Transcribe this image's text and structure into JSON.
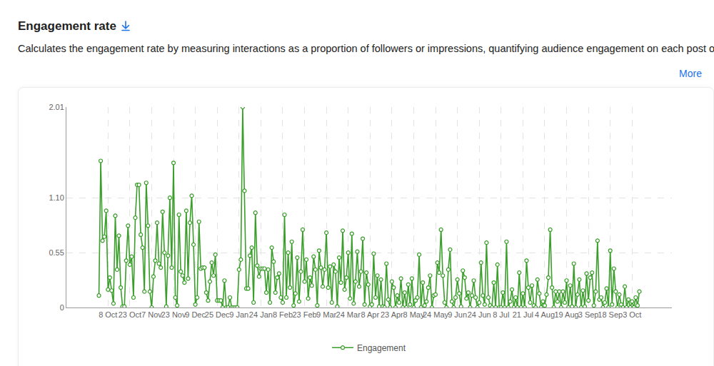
{
  "chart_data": {
    "type": "line",
    "title": "Engagement rate",
    "subtitle": "Calculates the engagement rate by measuring interactions as a proportion of followers or impressions, quantifying audience engagement on each post or over time.",
    "annotations": [
      "More"
    ],
    "categories": [
      null,
      null,
      null,
      null,
      null,
      "8 Oct",
      null,
      null,
      null,
      null,
      null,
      null,
      null,
      null,
      null,
      null,
      null,
      "23 Oct",
      null,
      null,
      null,
      null,
      null,
      null,
      null,
      null,
      null,
      null,
      null,
      "7 Nov",
      null,
      null,
      null,
      null,
      null,
      null,
      null,
      null,
      null,
      null,
      null,
      "23 Nov",
      null,
      null,
      null,
      null,
      null,
      null,
      null,
      null,
      null,
      null,
      null,
      "9 Dec",
      null,
      null,
      null,
      null,
      null,
      null,
      null,
      null,
      null,
      null,
      null,
      "25 Dec",
      null,
      null,
      null,
      null,
      null,
      null,
      null,
      null,
      null,
      null,
      null,
      "9 Jan",
      null,
      null,
      null,
      null,
      null,
      null,
      null,
      null,
      null,
      null,
      null,
      "24 Jan",
      null,
      null,
      null,
      null,
      null,
      null,
      null,
      null,
      null,
      null,
      null,
      "8 Feb",
      null,
      null,
      null,
      null,
      null,
      null,
      null,
      null,
      null,
      null,
      null,
      "23 Feb",
      null,
      null,
      null,
      null,
      null,
      null,
      null,
      null,
      null,
      null,
      null,
      "9 Mar",
      null,
      null,
      null,
      null,
      null,
      null,
      null,
      null,
      null,
      null,
      null,
      "24 Mar",
      null,
      null,
      null,
      null,
      null,
      null,
      null,
      null,
      null,
      null,
      null,
      "8 Apr",
      null,
      null,
      null,
      null,
      null,
      null,
      null,
      null,
      null,
      null,
      null,
      "23 Apr",
      null,
      null,
      null,
      null,
      null,
      null,
      null,
      null,
      null,
      null,
      null,
      "8 May",
      null,
      null,
      null,
      null,
      null,
      null,
      null,
      null,
      null,
      null,
      null,
      "24 May",
      null,
      null,
      null,
      null,
      null,
      null,
      null,
      null,
      null,
      null,
      null,
      "9 Jun",
      null,
      null,
      null,
      null,
      null,
      null,
      null,
      null,
      null,
      null,
      null,
      "24 Jun",
      null,
      null,
      null,
      null,
      null,
      null,
      null,
      null,
      null,
      null,
      null,
      "8 Jul",
      null,
      null,
      null,
      null,
      null,
      null,
      null,
      null,
      null,
      null,
      null,
      "21 Jul",
      null,
      null,
      null,
      null,
      null,
      null,
      null,
      null,
      null,
      null,
      null,
      "4 Aug",
      null,
      null,
      null,
      null,
      null,
      null,
      null,
      null,
      null,
      null,
      null,
      "19 Aug",
      null,
      null,
      null,
      null,
      null,
      null,
      null,
      null,
      null,
      null,
      null,
      "3 Sep",
      null,
      null,
      null,
      null,
      null,
      null,
      null,
      null,
      null,
      null,
      null,
      "18 Sep",
      null,
      null,
      null,
      null,
      null,
      null,
      null,
      null,
      null,
      null,
      null,
      "3 Oct",
      null,
      null,
      null,
      null
    ],
    "series": [
      {
        "name": "Engagement",
        "color": "#3a9e2a",
        "marker": "circle",
        "line_style": "solid",
        "values": [
          0.12,
          1.47,
          0.67,
          0.71,
          0.97,
          0.18,
          0.3,
          0.17,
          0.04,
          0.92,
          0.38,
          0.72,
          0.2,
          0.01,
          0.01,
          0.47,
          0.82,
          0.43,
          0.51,
          0.1,
          0.9,
          1.23,
          1.23,
          0.73,
          0.6,
          0.16,
          1.25,
          0.82,
          0.16,
          0,
          0.31,
          0.47,
          0.85,
          0.44,
          0.4,
          0.96,
          0.55,
          0.01,
          0.52,
          1.1,
          0.4,
          1.45,
          0.1,
          0.02,
          0.93,
          0.36,
          0.32,
          0.25,
          0.97,
          0.29,
          0.85,
          1.12,
          0.63,
          0.03,
          0.1,
          0.86,
          0.39,
          0.4,
          0.4,
          0.15,
          0.07,
          0.26,
          0.45,
          0.32,
          0.53,
          0.07,
          0.07,
          0.07,
          0,
          0.27,
          0,
          0,
          0.1,
          0,
          0,
          0,
          0,
          0.38,
          0.48,
          2.01,
          1.17,
          0.19,
          0.19,
          0.52,
          0.6,
          0.05,
          0.95,
          0.42,
          0.31,
          0.39,
          0.39,
          0.39,
          0.15,
          0.38,
          0.05,
          0.6,
          0.46,
          0.15,
          0.3,
          0.34,
          0.1,
          0.05,
          0.93,
          0.1,
          0.55,
          0.2,
          0.66,
          0.02,
          0.14,
          0.5,
          0.06,
          0.36,
          0.78,
          0.26,
          0.48,
          0.09,
          0.3,
          0.22,
          0.51,
          0.38,
          0.02,
          0.57,
          0.4,
          0.21,
          0.38,
          0.75,
          0.2,
          0.41,
          0.05,
          0.43,
          0.36,
          0.01,
          0.5,
          0.25,
          0.77,
          0.18,
          0.3,
          0.55,
          0.09,
          0.74,
          0.04,
          0.26,
          0.56,
          0.21,
          0.36,
          0.69,
          0.03,
          0.35,
          0.23,
          0.01,
          0.03,
          0.54,
          0.1,
          0.32,
          0.01,
          0.28,
          0.01,
          0,
          0.44,
          0.08,
          0,
          0.26,
          0.2,
          0,
          0.12,
          0.05,
          0.29,
          0,
          0.15,
          0,
          0.23,
          0.03,
          0.29,
          0,
          0.07,
          0.1,
          0.53,
          0,
          0.25,
          0.02,
          0.06,
          0.2,
          0.32,
          0,
          0.12,
          0.13,
          0.45,
          0.35,
          0.78,
          0.32,
          0.05,
          0,
          0.38,
          0.58,
          0.06,
          0,
          0.1,
          0.28,
          0.14,
          0.01,
          0.37,
          0.3,
          0.09,
          0.15,
          0,
          0.12,
          0.27,
          0.1,
          0,
          0.05,
          0.45,
          0.12,
          0.03,
          0.65,
          0.1,
          0.02,
          0,
          0.25,
          0,
          0.43,
          0,
          0,
          0.15,
          0,
          0.66,
          0,
          0.06,
          0.18,
          0,
          0.1,
          0,
          0.35,
          0,
          0.14,
          0,
          0.47,
          0.2,
          0.05,
          0.22,
          0.02,
          0,
          0.28,
          0.14,
          0,
          0.06,
          0.02,
          0.13,
          0.3,
          0.78,
          0.2,
          0,
          0.16,
          0.06,
          0.16,
          0,
          0.16,
          0.05,
          0.27,
          0,
          0.22,
          0.01,
          0.44,
          0,
          0.13,
          0.28,
          0,
          0.17,
          0.01,
          0.34,
          0.07,
          0.3,
          0.35,
          0.02,
          0.16,
          0.67,
          0.08,
          0.1,
          0,
          0.05,
          0.19,
          0,
          0.57,
          0.03,
          0.39,
          0.16,
          0,
          0.13,
          0.03,
          0,
          0.21,
          0,
          0.08,
          0,
          0.06,
          0,
          0.1,
          0.02,
          0.16
        ]
      }
    ],
    "ylim": [
      0,
      2.01
    ],
    "yticks": [
      0,
      0.55,
      {
        "value": 1.1,
        "label": "1.10"
      },
      2.01
    ],
    "grid": true,
    "legend": "bottom"
  }
}
